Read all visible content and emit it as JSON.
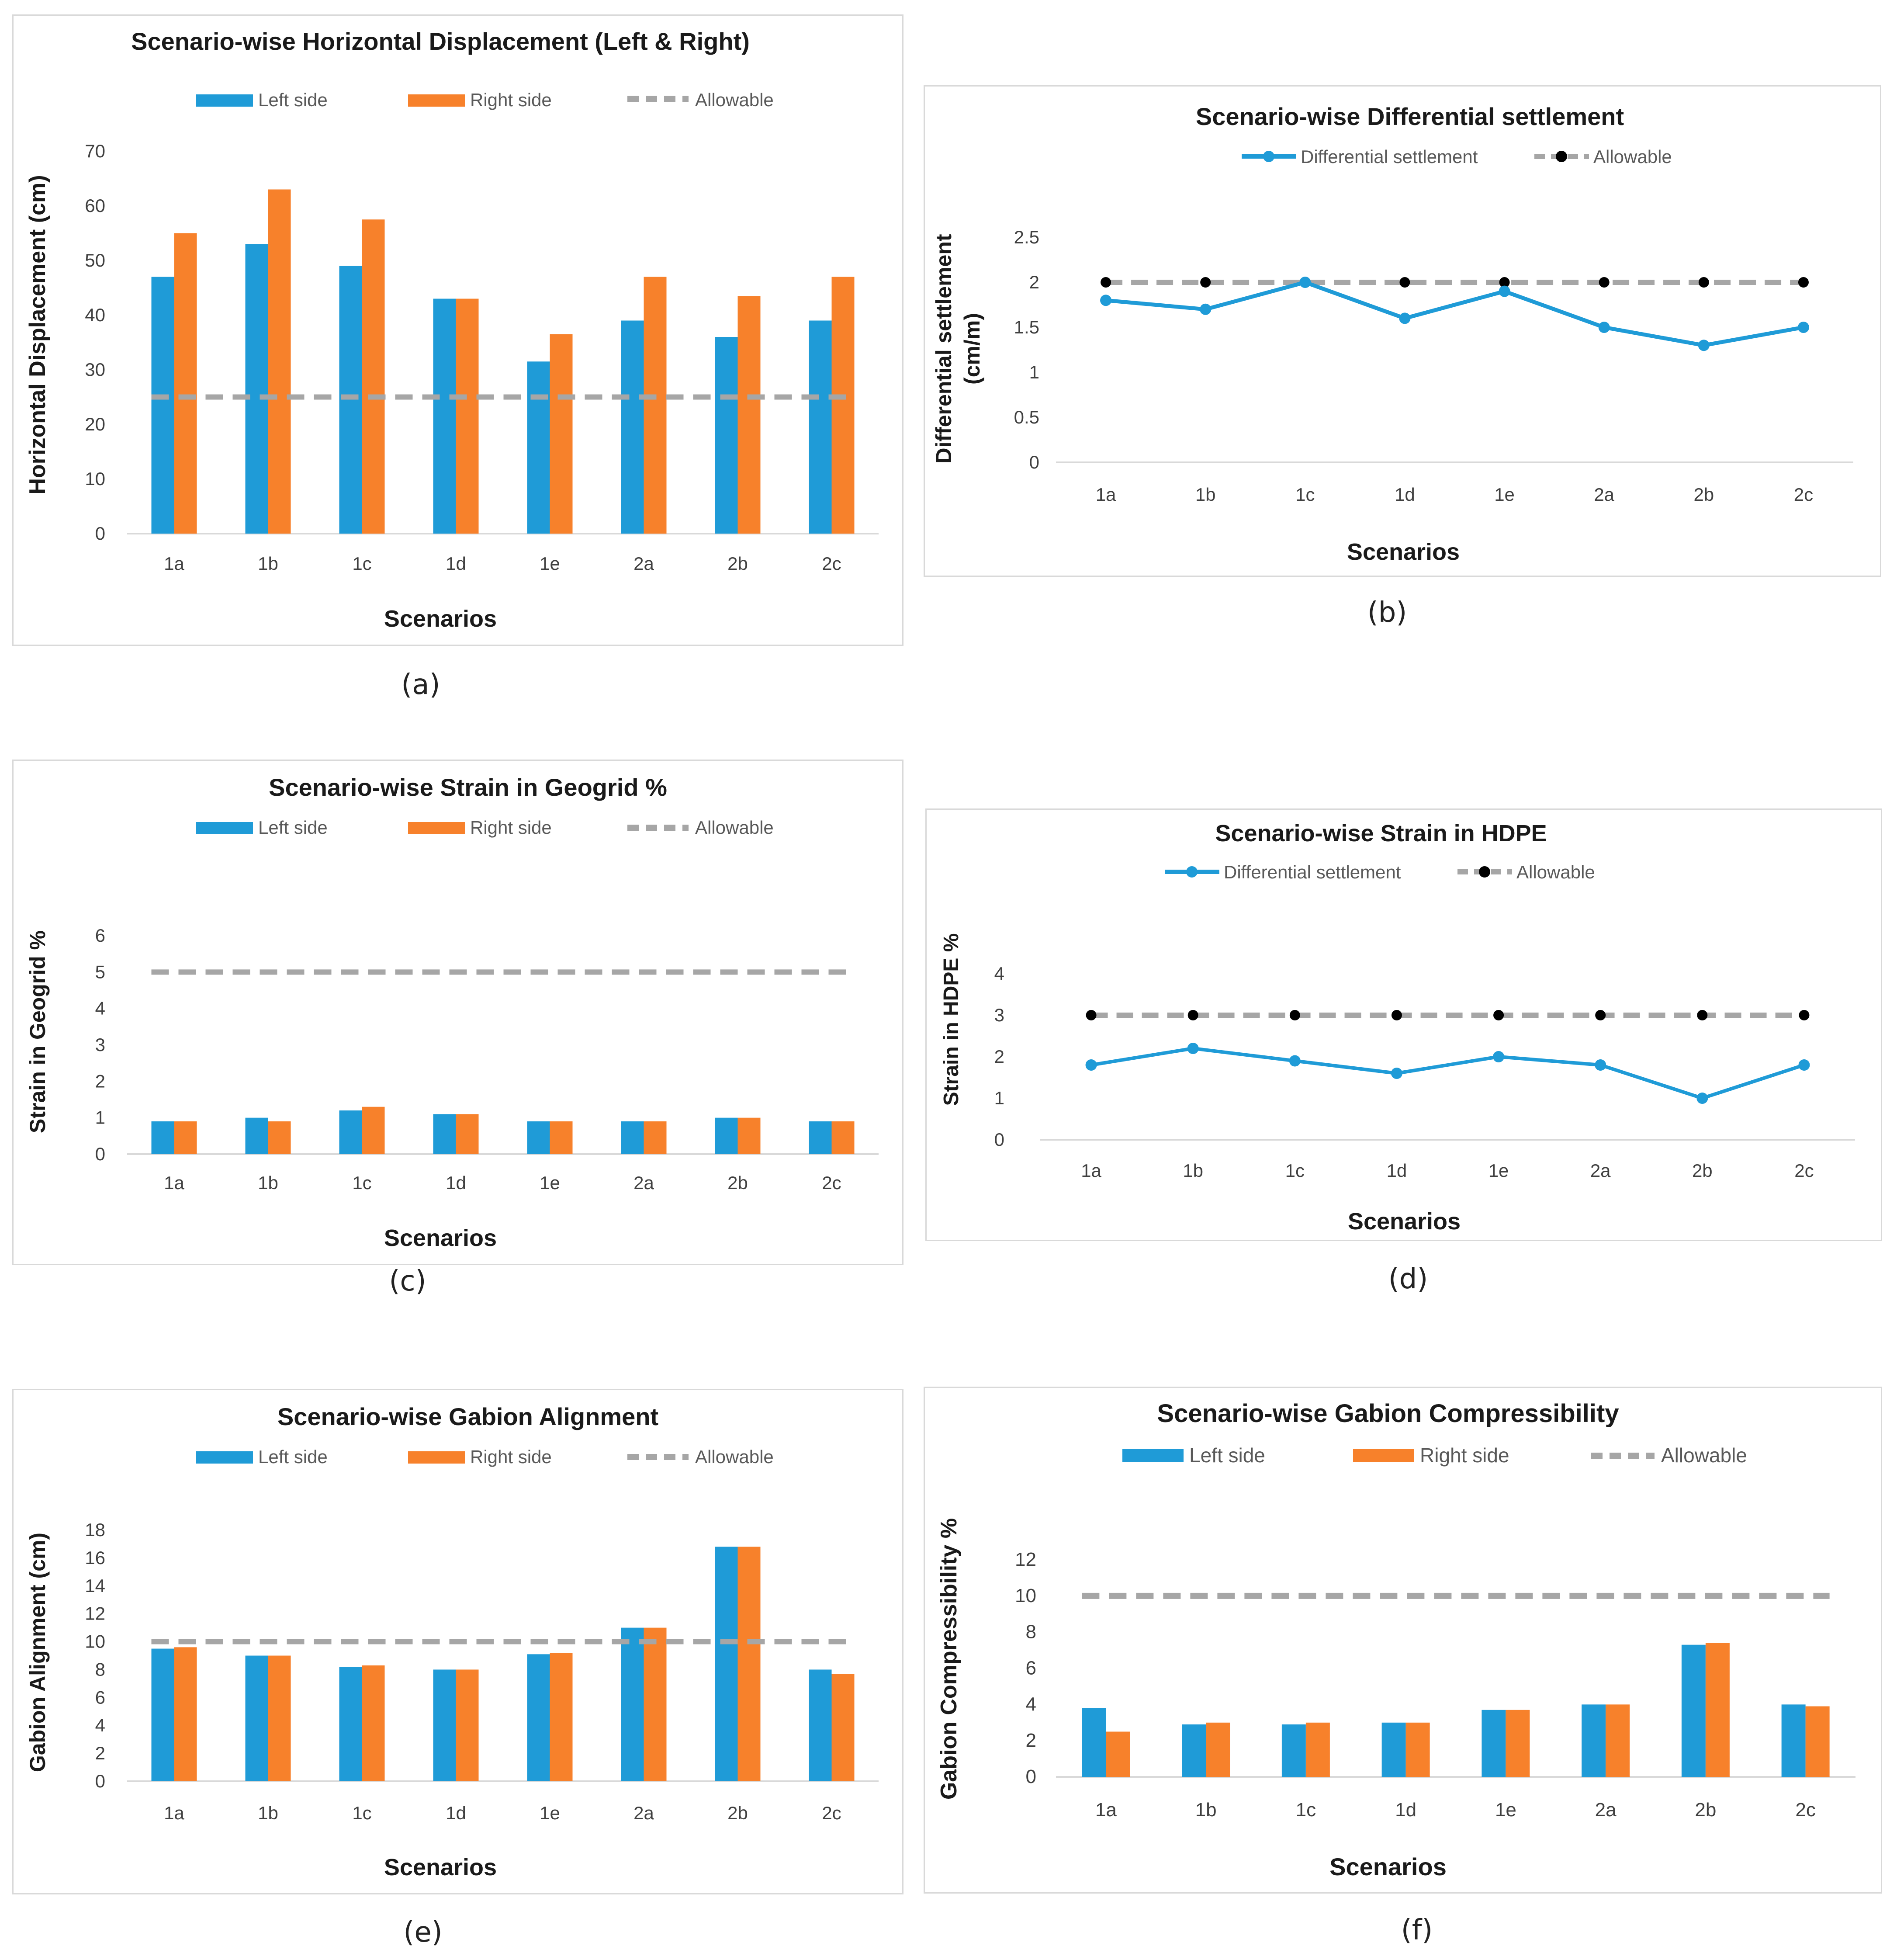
{
  "colors": {
    "left": "#1f9bd7",
    "right": "#f7812b",
    "allowable": "#a6a6a6",
    "marker": "#000000",
    "axis": "#d9d9d9"
  },
  "chart_data": [
    {
      "id": "a",
      "type": "bar",
      "caption": "(a)",
      "title": "Scenario-wise Horizontal Displacement (Left & Right)",
      "xlabel": "Scenarios",
      "ylabel": "Horizontal Displacement (cm)",
      "ylabel2": "",
      "categories": [
        "1a",
        "1b",
        "1c",
        "1d",
        "1e",
        "2a",
        "2b",
        "2c"
      ],
      "ylim": [
        0,
        70
      ],
      "yticks": [
        "0",
        "10",
        "20",
        "30",
        "40",
        "50",
        "60",
        "70"
      ],
      "ystep": 10,
      "legend": [
        "Left side",
        "Right side",
        "Allowable"
      ],
      "series": [
        {
          "name": "Left side",
          "values": [
            47,
            53,
            49,
            43,
            31.5,
            39,
            36,
            39
          ]
        },
        {
          "name": "Right side",
          "values": [
            55,
            63,
            57.5,
            43,
            36.5,
            47,
            43.5,
            47
          ]
        }
      ],
      "allowable": 25
    },
    {
      "id": "b",
      "type": "line",
      "caption": "(b)",
      "title": "Scenario-wise Differential settlement",
      "xlabel": "Scenarios",
      "ylabel": "Differential settlement",
      "ylabel2": "(cm/m)",
      "categories": [
        "1a",
        "1b",
        "1c",
        "1d",
        "1e",
        "2a",
        "2b",
        "2c"
      ],
      "ylim": [
        0,
        2.5
      ],
      "yticks": [
        "0",
        "0.5",
        "1",
        "1.5",
        "2",
        "2.5"
      ],
      "ystep": 0.5,
      "legend": [
        "Differential settlement",
        "Allowable"
      ],
      "series": [
        {
          "name": "Differential settlement",
          "values": [
            1.8,
            1.7,
            2.0,
            1.6,
            1.9,
            1.5,
            1.3,
            1.5
          ]
        }
      ],
      "allowable": 2
    },
    {
      "id": "c",
      "type": "bar",
      "caption": "(c)",
      "title": "Scenario-wise Strain in Geogrid %",
      "xlabel": "Scenarios",
      "ylabel": "Strain in Geogrid %",
      "ylabel2": "",
      "categories": [
        "1a",
        "1b",
        "1c",
        "1d",
        "1e",
        "2a",
        "2b",
        "2c"
      ],
      "ylim": [
        0,
        6
      ],
      "yticks": [
        "0",
        "1",
        "2",
        "3",
        "4",
        "5",
        "6"
      ],
      "ystep": 1,
      "legend": [
        "Left side",
        "Right side",
        "Allowable"
      ],
      "series": [
        {
          "name": "Left side",
          "values": [
            0.9,
            1.0,
            1.2,
            1.1,
            0.9,
            0.9,
            1.0,
            0.9
          ]
        },
        {
          "name": "Right side",
          "values": [
            0.9,
            0.9,
            1.3,
            1.1,
            0.9,
            0.9,
            1.0,
            0.9
          ]
        }
      ],
      "allowable": 5
    },
    {
      "id": "d",
      "type": "line",
      "caption": "(d)",
      "title": "Scenario-wise Strain in HDPE",
      "xlabel": "Scenarios",
      "ylabel": "Strain in HDPE %",
      "ylabel2": "",
      "categories": [
        "1a",
        "1b",
        "1c",
        "1d",
        "1e",
        "2a",
        "2b",
        "2c"
      ],
      "ylim": [
        0,
        4
      ],
      "yticks": [
        "0",
        "1",
        "2",
        "3",
        "4"
      ],
      "ystep": 1,
      "legend": [
        "Differential settlement",
        "Allowable"
      ],
      "series": [
        {
          "name": "Differential settlement",
          "values": [
            1.8,
            2.2,
            1.9,
            1.6,
            2.0,
            1.8,
            1.0,
            1.8
          ]
        }
      ],
      "allowable": 3
    },
    {
      "id": "e",
      "type": "bar",
      "caption": "(e)",
      "title": "Scenario-wise Gabion Alignment",
      "xlabel": "Scenarios",
      "ylabel": "Gabion Alignment (cm)",
      "ylabel2": "",
      "categories": [
        "1a",
        "1b",
        "1c",
        "1d",
        "1e",
        "2a",
        "2b",
        "2c"
      ],
      "ylim": [
        0,
        18
      ],
      "yticks": [
        "0",
        "2",
        "4",
        "6",
        "8",
        "10",
        "12",
        "14",
        "16",
        "18"
      ],
      "ystep": 2,
      "legend": [
        "Left side",
        "Right side",
        "Allowable"
      ],
      "series": [
        {
          "name": "Left side",
          "values": [
            9.5,
            9.0,
            8.2,
            8.0,
            9.1,
            11.0,
            16.8,
            8.0
          ]
        },
        {
          "name": "Right side",
          "values": [
            9.6,
            9.0,
            8.3,
            8.0,
            9.2,
            11.0,
            16.8,
            7.7
          ]
        }
      ],
      "allowable": 10
    },
    {
      "id": "f",
      "type": "bar",
      "caption": "(f)",
      "title": "Scenario-wise Gabion Compressibility",
      "xlabel": "Scenarios",
      "ylabel": "Gabion Compressibility %",
      "ylabel2": "",
      "categories": [
        "1a",
        "1b",
        "1c",
        "1d",
        "1e",
        "2a",
        "2b",
        "2c"
      ],
      "ylim": [
        0,
        12
      ],
      "yticks": [
        "0",
        "2",
        "4",
        "6",
        "8",
        "10",
        "12"
      ],
      "ystep": 2,
      "legend": [
        "Left side",
        "Right side",
        "Allowable"
      ],
      "series": [
        {
          "name": "Left side",
          "values": [
            3.8,
            2.9,
            2.9,
            3.0,
            3.7,
            4.0,
            7.3,
            4.0
          ]
        },
        {
          "name": "Right side",
          "values": [
            2.5,
            3.0,
            3.0,
            3.0,
            3.7,
            4.0,
            7.4,
            3.9
          ]
        }
      ],
      "allowable": 10
    }
  ]
}
